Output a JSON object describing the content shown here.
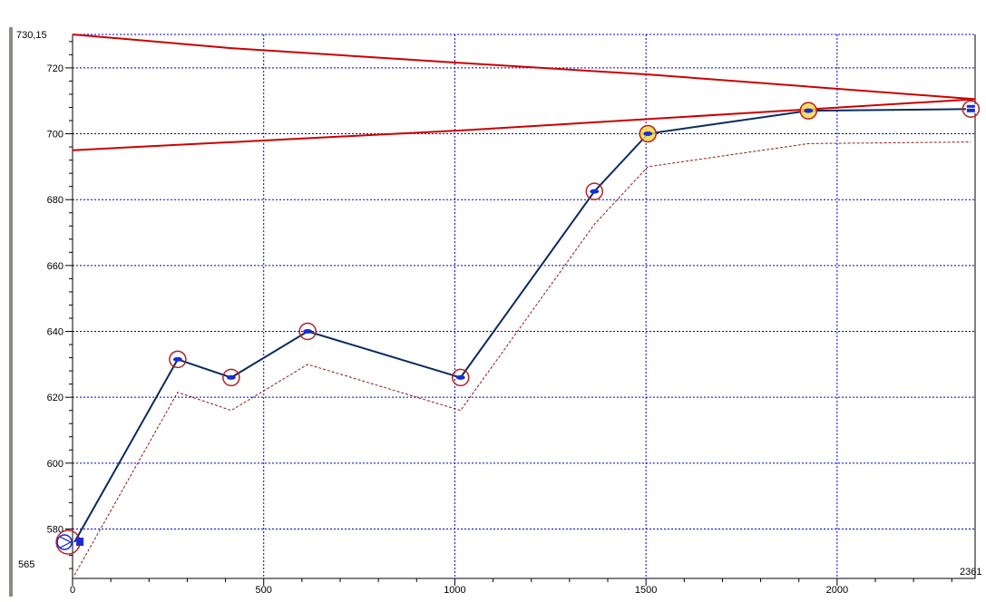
{
  "chart_data": {
    "type": "line",
    "xlim": [
      0,
      2361
    ],
    "ylim": [
      565,
      730.15
    ],
    "x_ticks": [
      0,
      500,
      1000,
      1500,
      2000
    ],
    "x_tick_labels": [
      "0",
      "500",
      "1000",
      "1500",
      "2000"
    ],
    "x_end_label": "2361",
    "y_ticks": [
      580,
      600,
      620,
      640,
      660,
      680,
      700,
      720
    ],
    "y_tick_labels": [
      "580",
      "600",
      "620",
      "640",
      "660",
      "680",
      "700",
      "720"
    ],
    "y_min_label": "565",
    "y_max_label": "730,15",
    "grid": true,
    "series": [
      {
        "role": "profile",
        "color": "#0a2c5e",
        "style": "solid",
        "points": [
          [
            5,
            576
          ],
          [
            275,
            631.5
          ],
          [
            415,
            626
          ],
          [
            615,
            640
          ],
          [
            1015,
            626
          ],
          [
            1365,
            682.5
          ],
          [
            1505,
            700
          ],
          [
            1925,
            707
          ],
          [
            2350,
            707.5
          ]
        ]
      },
      {
        "role": "lower-profile",
        "color": "#8b1a1a",
        "style": "dashed",
        "points": [
          [
            5,
            566
          ],
          [
            275,
            621.5
          ],
          [
            415,
            616
          ],
          [
            615,
            630
          ],
          [
            1015,
            616
          ],
          [
            1365,
            672.5
          ],
          [
            1505,
            690
          ],
          [
            1925,
            697
          ],
          [
            2350,
            697.5
          ]
        ]
      },
      {
        "role": "upper-limit",
        "color": "#cc0000",
        "style": "solid",
        "points": [
          [
            0,
            730.15
          ],
          [
            415,
            726
          ],
          [
            1015,
            721.5
          ],
          [
            1505,
            718
          ],
          [
            2361,
            710.5
          ]
        ]
      },
      {
        "role": "lower-limit",
        "color": "#cc0000",
        "style": "solid",
        "points": [
          [
            0,
            695
          ],
          [
            1015,
            701
          ],
          [
            2361,
            710.5
          ]
        ]
      }
    ],
    "markers": [
      {
        "x": 5,
        "y": 576,
        "kind": "pump"
      },
      {
        "x": 275,
        "y": 631.5,
        "kind": "node"
      },
      {
        "x": 415,
        "y": 626,
        "kind": "node"
      },
      {
        "x": 615,
        "y": 640,
        "kind": "node"
      },
      {
        "x": 1015,
        "y": 626,
        "kind": "node"
      },
      {
        "x": 1365,
        "y": 682.5,
        "kind": "node"
      },
      {
        "x": 1505,
        "y": 700,
        "kind": "highlight"
      },
      {
        "x": 1925,
        "y": 707,
        "kind": "highlight"
      },
      {
        "x": 2350,
        "y": 707.5,
        "kind": "tank"
      }
    ],
    "colors": {
      "grid": "#0000cc",
      "axis": "#000000",
      "marker_ring": "#b22222",
      "marker_dot": "#1a2bd6",
      "highlight_fill": "#f5d94a"
    }
  }
}
